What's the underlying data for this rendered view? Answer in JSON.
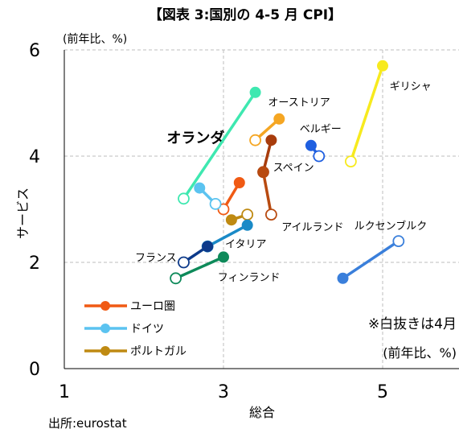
{
  "chart_data": {
    "type": "scatter",
    "title": "【図表 3:国別の 4-5 月 CPI】",
    "yunit": "(前年比、%)",
    "xlabel": "総合",
    "ylabel": "サービス",
    "xlim": [
      1,
      6
    ],
    "ylim": [
      0,
      6
    ],
    "xticks": [
      1,
      3,
      5
    ],
    "yticks": [
      0,
      2,
      4,
      6
    ],
    "grid": true,
    "note": [
      "※白抜きは4月",
      "(前年比、%)"
    ],
    "source": "出所:eurostat",
    "legend_position": "bottom-left",
    "legend": [
      {
        "name": "ユーロ圏",
        "color": "#f05a14"
      },
      {
        "name": "ドイツ",
        "color": "#5bc3f0"
      },
      {
        "name": "ポルトガル",
        "color": "#bf8a12"
      }
    ],
    "series": [
      {
        "name": "ユーロ圏",
        "color": "#f05a14",
        "april": [
          3.0,
          3.0
        ],
        "may": [
          3.2,
          3.5
        ]
      },
      {
        "name": "ドイツ",
        "color": "#5bc3f0",
        "april": [
          2.9,
          3.1
        ],
        "may": [
          2.7,
          3.4
        ]
      },
      {
        "name": "ポルトガル",
        "color": "#bf8a12",
        "april": [
          3.3,
          2.9
        ],
        "may": [
          3.1,
          2.8
        ]
      },
      {
        "name": "オランダ",
        "color": "#3ee8b0",
        "april": [
          2.5,
          3.2
        ],
        "may": [
          3.4,
          5.2
        ]
      },
      {
        "name": "オーストリア",
        "color": "#f5a623",
        "april": [
          3.4,
          4.3
        ],
        "may": [
          3.7,
          4.7
        ]
      },
      {
        "name": "ギリシャ",
        "color": "#f7ea1e",
        "april": [
          4.6,
          3.9
        ],
        "may": [
          5.0,
          5.7
        ]
      },
      {
        "name": "ベルギー",
        "color": "#1f5fe0",
        "april": [
          4.2,
          4.0
        ],
        "may": [
          4.1,
          4.2
        ]
      },
      {
        "name": "スペイン",
        "color": "#a83c0c",
        "april": [
          3.5,
          3.7
        ],
        "may": [
          3.6,
          4.3
        ]
      },
      {
        "name": "アイルランド",
        "color": "#b84a10",
        "april": [
          3.6,
          2.9
        ],
        "may": [
          3.5,
          3.7
        ]
      },
      {
        "name": "ルクセンブルク",
        "color": "#3a7fdb",
        "april": [
          5.2,
          2.4
        ],
        "may": [
          4.5,
          1.7
        ]
      },
      {
        "name": "イタリア",
        "color": "#1a8ac7",
        "april": [
          2.8,
          2.3
        ],
        "may": [
          3.3,
          2.7
        ]
      },
      {
        "name": "フランス",
        "color": "#0d3a8a",
        "april": [
          2.5,
          2.0
        ],
        "may": [
          2.8,
          2.3
        ]
      },
      {
        "name": "フィンランド",
        "color": "#0e8a5a",
        "april": [
          2.4,
          1.7
        ],
        "may": [
          3.0,
          2.1
        ]
      }
    ],
    "labels": [
      {
        "text": "オランダ",
        "x": 2.65,
        "y": 4.25,
        "size": 18,
        "weight": "bold"
      },
      {
        "text": "オーストリア",
        "x": 3.95,
        "y": 4.95,
        "size": 13
      },
      {
        "text": "ギリシャ",
        "x": 5.35,
        "y": 5.25,
        "size": 13
      },
      {
        "text": "ベルギー",
        "x": 4.22,
        "y": 4.45,
        "size": 13
      },
      {
        "text": "スペイン",
        "x": 3.88,
        "y": 3.72,
        "size": 13
      },
      {
        "text": "アイルランド",
        "x": 4.12,
        "y": 2.6,
        "size": 13
      },
      {
        "text": "ルクセンブルク",
        "x": 5.1,
        "y": 2.62,
        "size": 13
      },
      {
        "text": "イタリア",
        "x": 3.28,
        "y": 2.28,
        "size": 13
      },
      {
        "text": "フランス",
        "x": 2.15,
        "y": 2.02,
        "size": 13
      },
      {
        "text": "フィンランド",
        "x": 3.32,
        "y": 1.65,
        "size": 13
      }
    ]
  }
}
